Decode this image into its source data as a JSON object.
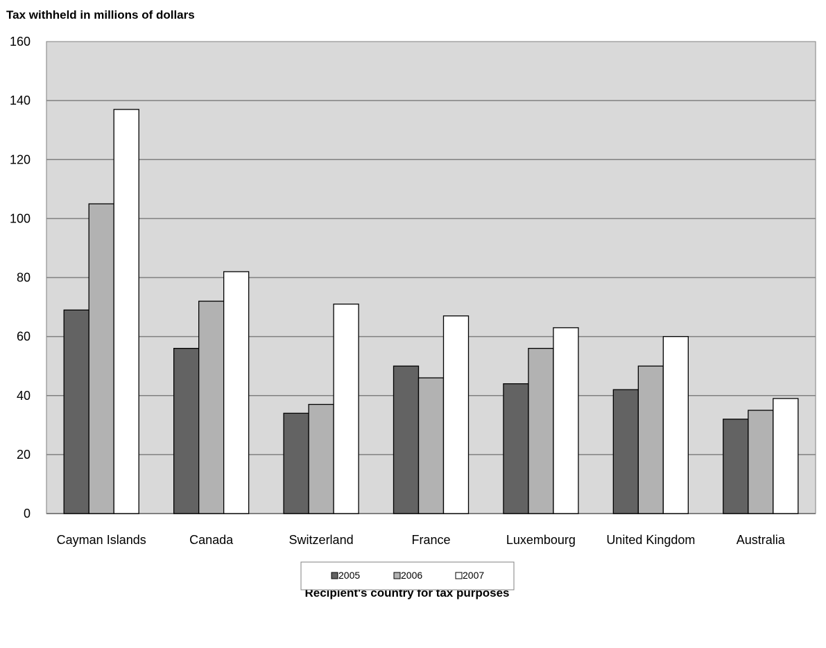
{
  "chart_data": {
    "type": "bar",
    "title": "",
    "ylabel": "Tax withheld in millions of dollars",
    "xlabel": "Recipient's country for tax purposes",
    "ylim": [
      0,
      160
    ],
    "yticks": [
      0,
      20,
      40,
      60,
      80,
      100,
      120,
      140,
      160
    ],
    "grid": true,
    "legend_position": "bottom",
    "categories": [
      "Cayman Islands",
      "Canada",
      "Switzerland",
      "France",
      "Luxembourg",
      "United Kingdom",
      "Australia"
    ],
    "series": [
      {
        "name": "2005",
        "values": [
          69,
          56,
          34,
          50,
          44,
          42,
          32
        ],
        "color": "#636363"
      },
      {
        "name": "2006",
        "values": [
          105,
          72,
          37,
          46,
          56,
          50,
          35
        ],
        "color": "#b2b2b2"
      },
      {
        "name": "2007",
        "values": [
          137,
          82,
          71,
          67,
          63,
          60,
          39
        ],
        "color": "#ffffff"
      }
    ],
    "plot_background": "#d9d9d9"
  }
}
